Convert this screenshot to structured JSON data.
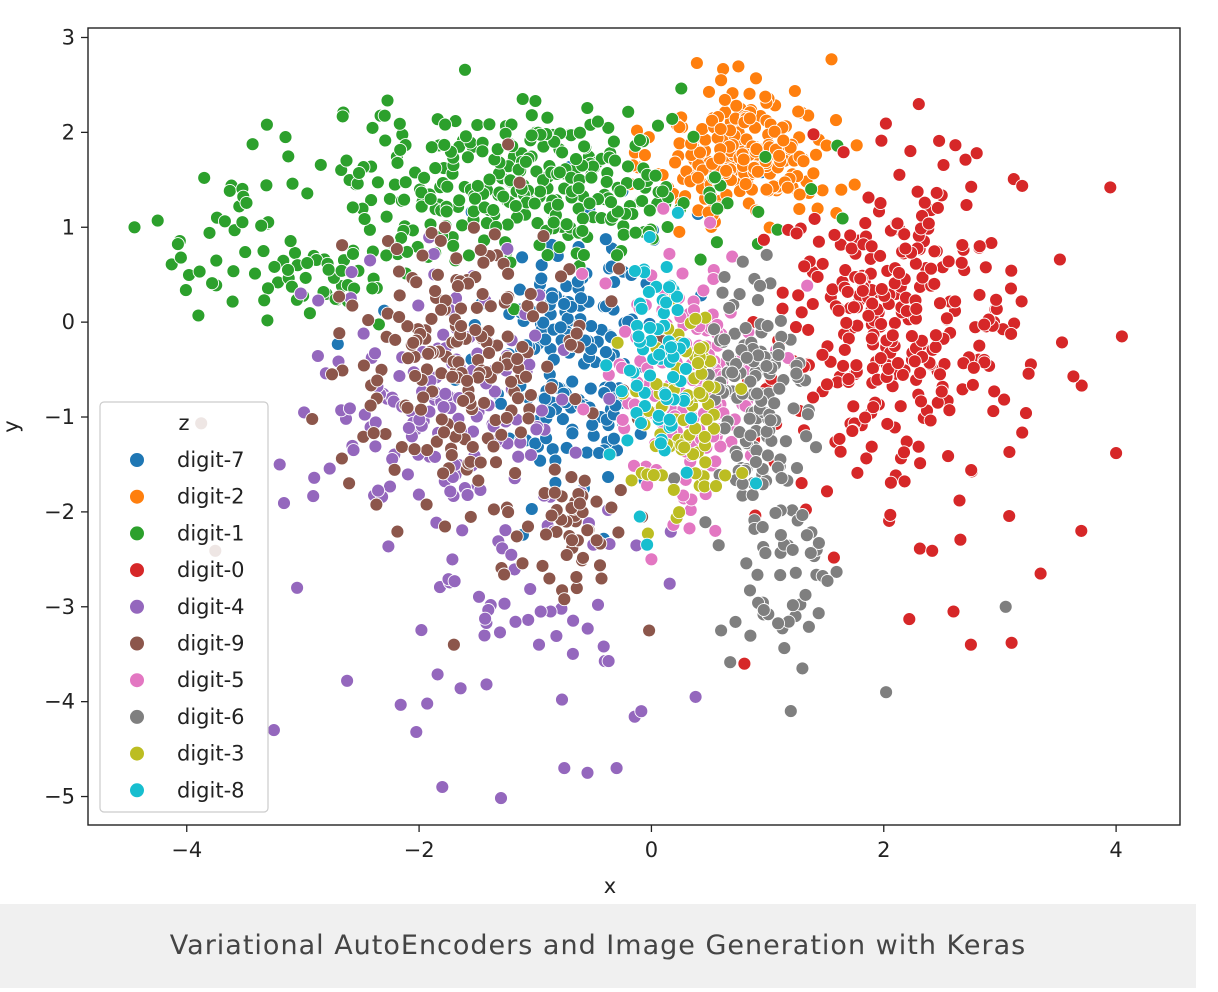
{
  "chart_data": {
    "type": "scatter",
    "title": "",
    "xlabel": "x",
    "ylabel": "y",
    "xlim": [
      -4.85,
      4.55
    ],
    "ylim": [
      -5.3,
      3.1
    ],
    "x_ticks": [
      -4,
      -2,
      0,
      2,
      4
    ],
    "y_ticks": [
      3,
      2,
      1,
      0,
      -1,
      -2,
      -3,
      -4,
      -5
    ],
    "x_tick_labels": [
      "−4",
      "−2",
      "0",
      "2",
      "4"
    ],
    "y_tick_labels": [
      "3",
      "2",
      "1",
      "0",
      "−1",
      "−2",
      "−3",
      "−4",
      "−5"
    ],
    "grid": false,
    "legend": {
      "title": "z",
      "placement": "lower-left",
      "entries": [
        "digit-7",
        "digit-2",
        "digit-1",
        "digit-0",
        "digit-4",
        "digit-9",
        "digit-5",
        "digit-6",
        "digit-3",
        "digit-8"
      ]
    },
    "series": [
      {
        "name": "digit-7",
        "color": "#1f77b4",
        "clusters": [
          {
            "cx": -0.7,
            "cy": -0.3,
            "sx": 0.35,
            "sy": 0.75,
            "n": 180
          }
        ],
        "points": [
          [
            -2.7,
            -0.23
          ],
          [
            -2.3,
            0.12
          ],
          [
            0.4,
            1.14
          ],
          [
            -1.03,
            -1.97
          ],
          [
            0.95,
            1.58
          ],
          [
            -0.25,
            1.38
          ]
        ]
      },
      {
        "name": "digit-2",
        "color": "#ff7f0e",
        "clusters": [
          {
            "cx": 0.8,
            "cy": 1.75,
            "sx": 0.38,
            "sy": 0.35,
            "n": 220
          }
        ],
        "points": [
          [
            1.55,
            2.77
          ],
          [
            0.6,
            2.55
          ],
          [
            0.9,
            2.57
          ],
          [
            1.75,
            1.45
          ]
        ]
      },
      {
        "name": "digit-1",
        "color": "#2ca02c",
        "clusters": [
          {
            "cx": -1.0,
            "cy": 1.45,
            "sx": 0.9,
            "sy": 0.4,
            "n": 320
          },
          {
            "cx": -3.0,
            "cy": 0.75,
            "sx": 0.55,
            "sy": 0.4,
            "n": 80
          }
        ],
        "points": [
          [
            -4.45,
            1.0
          ],
          [
            -4.25,
            1.07
          ],
          [
            -4.05,
            0.68
          ],
          [
            -3.9,
            0.07
          ],
          [
            -3.85,
            1.52
          ],
          [
            -3.15,
            1.95
          ]
        ]
      },
      {
        "name": "digit-0",
        "color": "#d62728",
        "clusters": [
          {
            "cx": 2.1,
            "cy": -0.1,
            "sx": 0.55,
            "sy": 0.85,
            "n": 330
          }
        ],
        "points": [
          [
            3.95,
            1.42
          ],
          [
            4.05,
            -0.15
          ],
          [
            4.0,
            -1.38
          ],
          [
            3.1,
            -3.38
          ],
          [
            2.75,
            -3.4
          ],
          [
            2.6,
            -3.05
          ],
          [
            2.22,
            -3.13
          ],
          [
            0.8,
            -3.6
          ],
          [
            2.8,
            1.78
          ],
          [
            3.7,
            -2.2
          ],
          [
            3.35,
            -2.65
          ]
        ]
      },
      {
        "name": "digit-4",
        "color": "#9467bd",
        "clusters": [
          {
            "cx": -1.8,
            "cy": -0.8,
            "sx": 0.55,
            "sy": 0.65,
            "n": 150
          },
          {
            "cx": -1.0,
            "cy": -2.9,
            "sx": 0.6,
            "sy": 0.7,
            "n": 60
          }
        ],
        "points": [
          [
            -3.25,
            -4.3
          ],
          [
            -1.8,
            -4.9
          ],
          [
            -1.93,
            -4.02
          ],
          [
            -0.55,
            -4.75
          ],
          [
            -0.3,
            -4.7
          ],
          [
            -0.75,
            -4.7
          ],
          [
            0.38,
            -3.95
          ],
          [
            -3.05,
            -2.8
          ],
          [
            -3.2,
            -1.5
          ],
          [
            -2.62,
            -3.78
          ]
        ]
      },
      {
        "name": "digit-9",
        "color": "#8c564b",
        "clusters": [
          {
            "cx": -1.6,
            "cy": -0.45,
            "sx": 0.55,
            "sy": 0.7,
            "n": 200
          },
          {
            "cx": -0.7,
            "cy": -2.2,
            "sx": 0.25,
            "sy": 0.35,
            "n": 50
          }
        ],
        "points": [
          [
            -0.02,
            -3.25
          ],
          [
            -1.7,
            -3.4
          ],
          [
            -2.75,
            -0.55
          ]
        ]
      },
      {
        "name": "digit-5",
        "color": "#e377c2",
        "clusters": [
          {
            "cx": 0.3,
            "cy": -0.6,
            "sx": 0.33,
            "sy": 0.7,
            "n": 160
          }
        ],
        "points": [
          [
            0.0,
            -2.5
          ],
          [
            0.55,
            -2.2
          ]
        ]
      },
      {
        "name": "digit-6",
        "color": "#7f7f7f",
        "clusters": [
          {
            "cx": 0.9,
            "cy": -0.9,
            "sx": 0.22,
            "sy": 0.75,
            "n": 140
          },
          {
            "cx": 1.15,
            "cy": -2.7,
            "sx": 0.25,
            "sy": 0.5,
            "n": 45
          }
        ],
        "points": [
          [
            2.02,
            -3.9
          ],
          [
            3.05,
            -3.0
          ],
          [
            1.2,
            -4.1
          ],
          [
            1.3,
            -3.65
          ],
          [
            0.6,
            -3.25
          ]
        ]
      },
      {
        "name": "digit-3",
        "color": "#bcbd22",
        "clusters": [
          {
            "cx": 0.25,
            "cy": -0.95,
            "sx": 0.2,
            "sy": 0.55,
            "n": 90
          }
        ],
        "points": []
      },
      {
        "name": "digit-8",
        "color": "#17becf",
        "clusters": [
          {
            "cx": 0.05,
            "cy": -0.4,
            "sx": 0.18,
            "sy": 0.6,
            "n": 70
          }
        ],
        "points": [
          [
            -0.1,
            -2.05
          ],
          [
            0.9,
            -1.7
          ]
        ]
      }
    ]
  },
  "caption": "Variational AutoEncoders and Image Generation with Keras"
}
